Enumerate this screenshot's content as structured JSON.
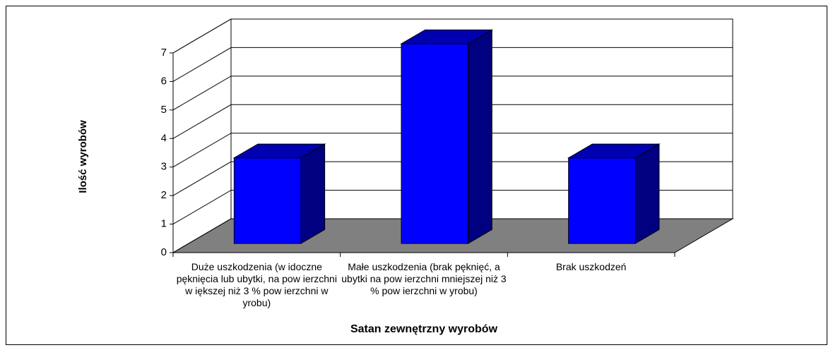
{
  "chart_data": {
    "type": "bar3d",
    "categories": [
      "Duże uszkodzenia (w idoczne pęknięcia lub ubytki, na pow ierzchni w iększej niż 3 % pow ierzchni w yrobu)",
      "Małe uszkodzenia (brak pęknięć, a ubytki na pow ierzchni mniejszej niż 3 % pow ierzchni w yrobu)",
      "Brak uszkodzeń"
    ],
    "values": [
      3,
      7,
      3
    ],
    "color": "#0000ff",
    "side_color": "#000080",
    "top_color": "#0000b0",
    "floor_color": "#808080",
    "ylim": [
      0,
      7
    ],
    "yticks": [
      0,
      1,
      2,
      3,
      4,
      5,
      6,
      7
    ],
    "grid": true,
    "x_label": "Satan zewnętrzny wyrobów",
    "y_label": "Ilość wyrobów"
  }
}
